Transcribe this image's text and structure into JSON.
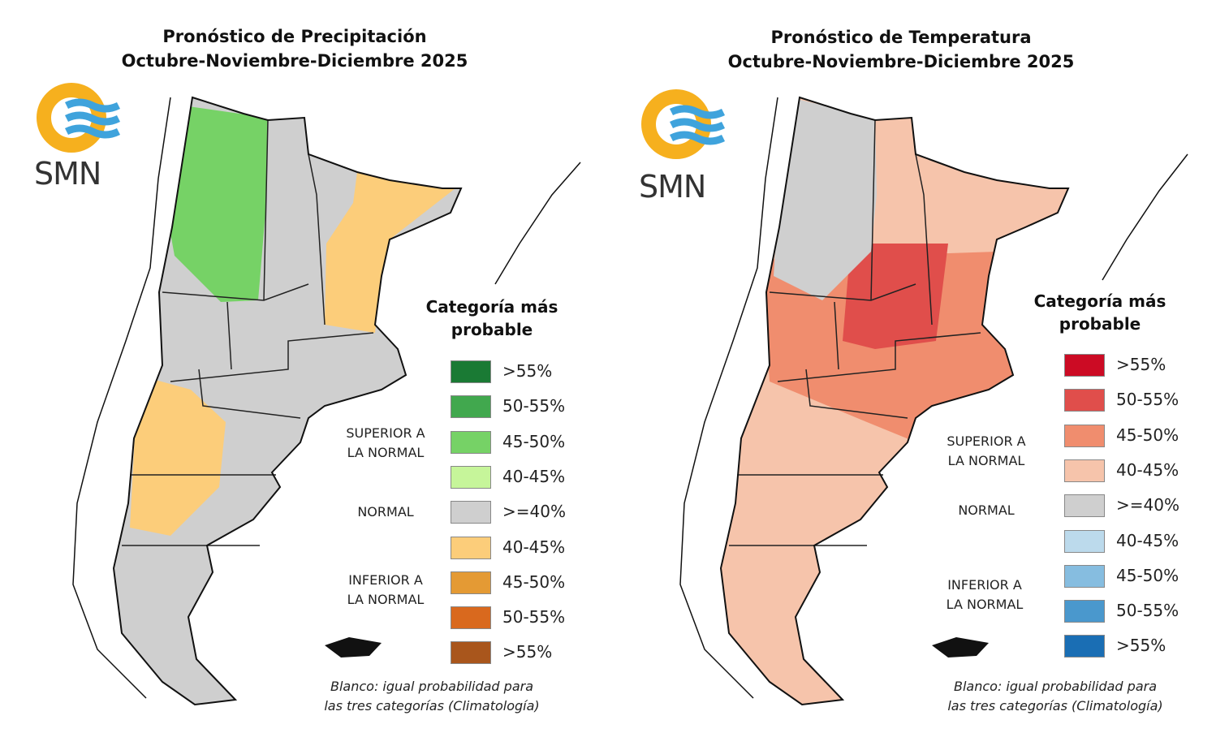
{
  "panels": [
    {
      "title_line1": "Pronóstico de Precipitación",
      "title_line2": "Octubre-Noviembre-Diciembre 2025",
      "logo_text": "SMN",
      "legend_title_line1": "Categoría más",
      "legend_title_line2": "probable",
      "categories": {
        "above": [
          "SUPERIOR A",
          "LA NORMAL"
        ],
        "normal": "NORMAL",
        "below": [
          "INFERIOR A",
          "LA NORMAL"
        ]
      },
      "legend": [
        {
          "label": ">55%",
          "color": "#1a7a34"
        },
        {
          "label": "50-55%",
          "color": "#41a84e"
        },
        {
          "label": "45-50%",
          "color": "#76d266"
        },
        {
          "label": "40-45%",
          "color": "#c6f59a"
        },
        {
          "label": ">=40%",
          "color": "#cfcfcf"
        },
        {
          "label": "40-45%",
          "color": "#fccd7a"
        },
        {
          "label": "45-50%",
          "color": "#e49a34"
        },
        {
          "label": "50-55%",
          "color": "#d9691e"
        },
        {
          "label": ">55%",
          "color": "#a9561c"
        }
      ],
      "note_line1": "Blanco: igual probabilidad para",
      "note_line2": "las tres categorías (Climatología)"
    },
    {
      "title_line1": "Pronóstico de Temperatura",
      "title_line2": "Octubre-Noviembre-Diciembre 2025",
      "logo_text": "SMN",
      "legend_title_line1": "Categoría más",
      "legend_title_line2": "probable",
      "categories": {
        "above": [
          "SUPERIOR A",
          "LA NORMAL"
        ],
        "normal": "NORMAL",
        "below": [
          "INFERIOR A",
          "LA NORMAL"
        ]
      },
      "legend": [
        {
          "label": ">55%",
          "color": "#cc0b24"
        },
        {
          "label": "50-55%",
          "color": "#e04e4b"
        },
        {
          "label": "45-50%",
          "color": "#f08d6e"
        },
        {
          "label": "40-45%",
          "color": "#f6c4ab"
        },
        {
          "label": ">=40%",
          "color": "#cfcfcf"
        },
        {
          "label": "40-45%",
          "color": "#bcdaec"
        },
        {
          "label": "45-50%",
          "color": "#86bde0"
        },
        {
          "label": "50-55%",
          "color": "#4a98cd"
        },
        {
          "label": ">55%",
          "color": "#1a6eb4"
        }
      ],
      "note_line1": "Blanco: igual probabilidad para",
      "note_line2": "las tres categorías (Climatología)"
    }
  ],
  "colors": {
    "logo_sun": "#f6b01e",
    "logo_waves": "#3fa3dc"
  }
}
